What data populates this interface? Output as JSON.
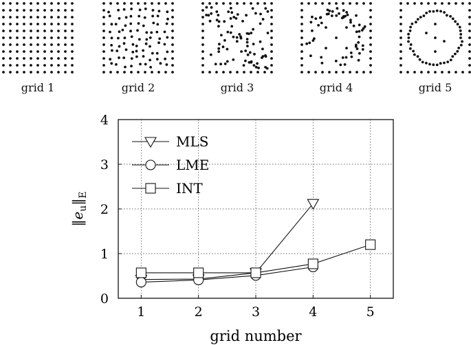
{
  "grids": [
    {
      "label": "grid 1",
      "pattern": "regular"
    },
    {
      "label": "grid 2",
      "pattern": "perturbed"
    },
    {
      "label": "grid 3",
      "pattern": "random"
    },
    {
      "label": "grid 4",
      "pattern": "clustered-boundary"
    },
    {
      "label": "grid 5",
      "pattern": "ring"
    }
  ],
  "chart_data": {
    "type": "line",
    "xlabel": "grid number",
    "ylabel": "||e_u||_E",
    "x": [
      1,
      2,
      3,
      4,
      5
    ],
    "xlim": [
      0.6,
      5.4
    ],
    "ylim": [
      0,
      4
    ],
    "xticks": [
      1,
      2,
      3,
      4,
      5
    ],
    "yticks": [
      0,
      1,
      2,
      3,
      4
    ],
    "grid": true,
    "legend_position": "top-left",
    "series": [
      {
        "name": "MLS",
        "marker": "triangle-down",
        "x": [
          1,
          2,
          3,
          4
        ],
        "values": [
          0.42,
          0.43,
          0.57,
          2.12
        ]
      },
      {
        "name": "LME",
        "marker": "circle",
        "x": [
          1,
          2,
          3,
          4
        ],
        "values": [
          0.36,
          0.41,
          0.51,
          0.7
        ]
      },
      {
        "name": "INT",
        "marker": "square",
        "x": [
          1,
          2,
          3,
          4,
          5
        ],
        "values": [
          0.57,
          0.57,
          0.57,
          0.77,
          1.2
        ]
      }
    ]
  }
}
